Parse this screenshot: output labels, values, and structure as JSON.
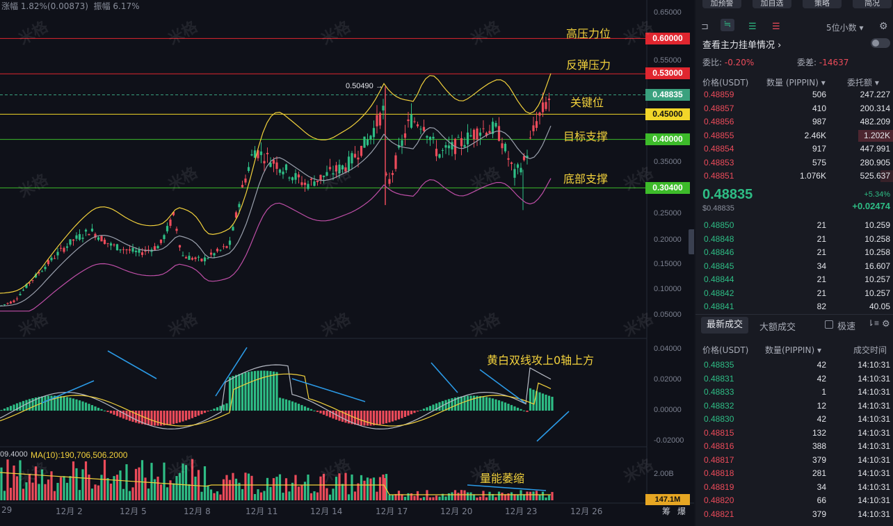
{
  "header_info": {
    "change": "涨幅 1.82%(0.00873)",
    "amplitude": "振幅 6.17%"
  },
  "price_axis": [
    "0.65000",
    "0.60000",
    "0.55000",
    "0.50000",
    "0.45000",
    "0.40000",
    "0.35000",
    "0.30000",
    "0.25000",
    "0.20000",
    "0.15000",
    "0.10000",
    "0.05000"
  ],
  "macd_axis": [
    "0.04000",
    "0.02000",
    "0.00000",
    "-0.02000"
  ],
  "vol_axis": {
    "label": "2.00B",
    "current": "147.1M"
  },
  "vol_ma_label": "MA(10):190,706,506.2000",
  "vol_left_label": "09.4000",
  "level_tags": [
    {
      "label": "0.60000",
      "color": "#e0262f"
    },
    {
      "label": "0.53000",
      "color": "#e0262f"
    },
    {
      "label": "0.48835",
      "color": "#3aa17e"
    },
    {
      "label": "0.45000",
      "color": "#f2d629"
    },
    {
      "label": "0.40000",
      "color": "#3dbb2a"
    },
    {
      "label": "0.30400",
      "color": "#3dbb2a"
    }
  ],
  "annotations": {
    "high_pressure": "高压力位",
    "rebound_pressure": "反弹压力",
    "key_level": "关键位",
    "target_support": "目标支撑",
    "bottom_support": "底部支撑",
    "macd_note": "黄白双线攻上0轴上方",
    "volume_note": "量能萎缩",
    "peak_price": "0.50490"
  },
  "x_labels": [
    "29",
    "12月 2",
    "12月 5",
    "12月 8",
    "12月 11",
    "12月 14",
    "12月 17",
    "12月 20",
    "12月 23",
    "12月 26"
  ],
  "x_right_icons": [
    "筹",
    "爆"
  ],
  "watermark": "米格",
  "colors": {
    "up": "#2ebd85",
    "down": "#ec4b5a",
    "yellow": "#f2d13c",
    "bg": "#0f1119"
  },
  "right_panel": {
    "top_buttons": [
      "加预警",
      "加自选",
      "策略",
      "简况"
    ],
    "precision": "5位小数",
    "view_orders_title": "查看主力挂单情况",
    "ratio_label": "委比:",
    "ratio_value": "-0.20%",
    "diff_label": "委差:",
    "diff_value": "-14637",
    "headers": [
      "价格(USDT)",
      "数量 (PIPPIN)",
      "委托额"
    ],
    "asks": [
      {
        "price": "0.48859",
        "qty": "506",
        "amount": "247.227"
      },
      {
        "price": "0.48857",
        "qty": "410",
        "amount": "200.314"
      },
      {
        "price": "0.48856",
        "qty": "987",
        "amount": "482.209"
      },
      {
        "price": "0.48855",
        "qty": "2.46K",
        "amount": "1.202K"
      },
      {
        "price": "0.48854",
        "qty": "917",
        "amount": "447.991"
      },
      {
        "price": "0.48853",
        "qty": "575",
        "amount": "280.905"
      },
      {
        "price": "0.48851",
        "qty": "1.076K",
        "amount": "525.637"
      }
    ],
    "last_price": "0.48835",
    "last_price_sub": "$0.48835",
    "change_pct": "+5.34%",
    "change_abs": "+0.02474",
    "bids": [
      {
        "price": "0.48850",
        "qty": "21",
        "amount": "10.259"
      },
      {
        "price": "0.48848",
        "qty": "21",
        "amount": "10.258"
      },
      {
        "price": "0.48846",
        "qty": "21",
        "amount": "10.258"
      },
      {
        "price": "0.48845",
        "qty": "34",
        "amount": "16.607"
      },
      {
        "price": "0.48844",
        "qty": "21",
        "amount": "10.257"
      },
      {
        "price": "0.48842",
        "qty": "21",
        "amount": "10.257"
      },
      {
        "price": "0.48841",
        "qty": "82",
        "amount": "40.05"
      }
    ],
    "trade_tabs": [
      "最新成交",
      "大额成交"
    ],
    "fast_label": "极速",
    "trade_headers": [
      "价格(USDT)",
      "数量(PIPPIN)",
      "成交时间"
    ],
    "trades": [
      {
        "price": "0.48835",
        "qty": "42",
        "time": "14:10:31",
        "side": "buy"
      },
      {
        "price": "0.48831",
        "qty": "42",
        "time": "14:10:31",
        "side": "buy"
      },
      {
        "price": "0.48833",
        "qty": "1",
        "time": "14:10:31",
        "side": "buy"
      },
      {
        "price": "0.48832",
        "qty": "12",
        "time": "14:10:31",
        "side": "buy"
      },
      {
        "price": "0.48830",
        "qty": "42",
        "time": "14:10:31",
        "side": "buy"
      },
      {
        "price": "0.48815",
        "qty": "132",
        "time": "14:10:31",
        "side": "sell"
      },
      {
        "price": "0.48816",
        "qty": "388",
        "time": "14:10:31",
        "side": "sell"
      },
      {
        "price": "0.48817",
        "qty": "379",
        "time": "14:10:31",
        "side": "sell"
      },
      {
        "price": "0.48818",
        "qty": "281",
        "time": "14:10:31",
        "side": "sell"
      },
      {
        "price": "0.48819",
        "qty": "34",
        "time": "14:10:31",
        "side": "sell"
      },
      {
        "price": "0.48820",
        "qty": "66",
        "time": "14:10:31",
        "side": "sell"
      },
      {
        "price": "0.48821",
        "qty": "379",
        "time": "14:10:31",
        "side": "sell"
      }
    ]
  }
}
